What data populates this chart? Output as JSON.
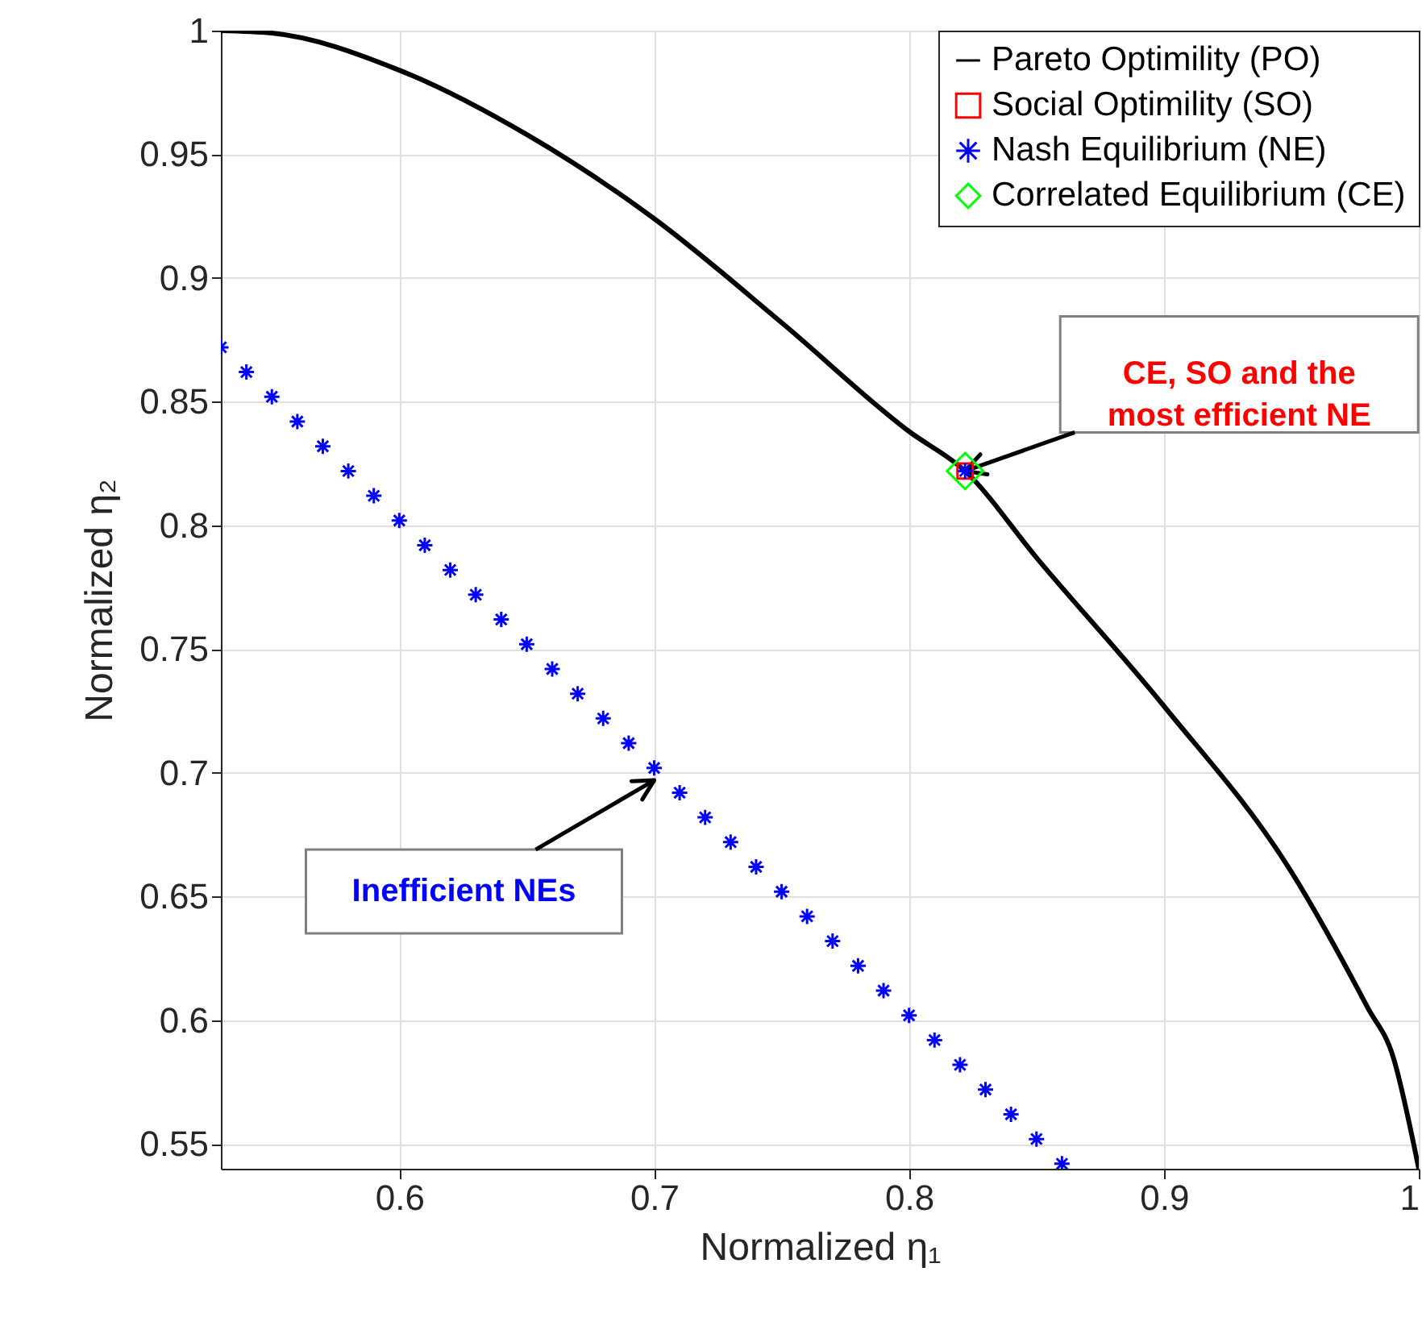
{
  "chart_data": {
    "type": "line",
    "xlabel": "Normalized η₁",
    "ylabel": "Normalized η₂",
    "xlim": [
      0.53,
      1
    ],
    "ylim": [
      0.54,
      1
    ],
    "xticks": [
      0.6,
      0.7,
      0.8,
      0.9,
      1
    ],
    "yticks": [
      0.55,
      0.6,
      0.65,
      0.7,
      0.75,
      0.8,
      0.85,
      0.9,
      0.95,
      1
    ],
    "grid": true,
    "legend": "top right",
    "series": [
      {
        "name": "Pareto Optimility (PO)",
        "color": "#000000",
        "marker": "none",
        "line_style": "solid",
        "x": [
          0.53,
          0.55,
          0.6,
          0.65,
          0.7,
          0.75,
          0.8,
          0.822,
          0.85,
          0.9,
          0.95,
          0.98,
          0.99,
          0.998,
          1.0
        ],
        "values": [
          1.0,
          0.999,
          0.984,
          0.958,
          0.924,
          0.882,
          0.838,
          0.822,
          0.787,
          0.727,
          0.66,
          0.605,
          0.585,
          0.55,
          0.54
        ]
      },
      {
        "name": "Social Optimility (SO)",
        "type": "scatter",
        "color": "#ff0000",
        "marker": "square",
        "x": [
          0.822
        ],
        "values": [
          0.822
        ]
      },
      {
        "name": "Nash Equilibrium (NE)",
        "type": "scatter",
        "color": "#0000ff",
        "marker": "cross",
        "x": [
          0.53,
          0.54,
          0.55,
          0.56,
          0.57,
          0.58,
          0.59,
          0.6,
          0.61,
          0.62,
          0.63,
          0.64,
          0.65,
          0.66,
          0.67,
          0.68,
          0.69,
          0.7,
          0.71,
          0.72,
          0.73,
          0.74,
          0.75,
          0.76,
          0.77,
          0.78,
          0.79,
          0.8,
          0.81,
          0.82,
          0.83,
          0.84,
          0.85,
          0.86,
          0.822
        ],
        "values": [
          0.872,
          0.862,
          0.852,
          0.842,
          0.832,
          0.822,
          0.812,
          0.802,
          0.792,
          0.782,
          0.772,
          0.762,
          0.752,
          0.742,
          0.732,
          0.722,
          0.712,
          0.702,
          0.692,
          0.682,
          0.672,
          0.662,
          0.652,
          0.642,
          0.632,
          0.622,
          0.612,
          0.602,
          0.592,
          0.582,
          0.572,
          0.562,
          0.552,
          0.542,
          0.822
        ]
      },
      {
        "name": "Correlated Equilibrium (CE)",
        "type": "scatter",
        "color": "#00ff00",
        "marker": "diamond",
        "x": [
          0.822
        ],
        "values": [
          0.822
        ]
      }
    ],
    "annotations": [
      {
        "text": "CE, SO and the most efficient NE",
        "x": 0.822,
        "y": 0.822
      },
      {
        "text": "Inefficient NEs",
        "x": 0.7,
        "y": 0.697
      }
    ]
  }
}
